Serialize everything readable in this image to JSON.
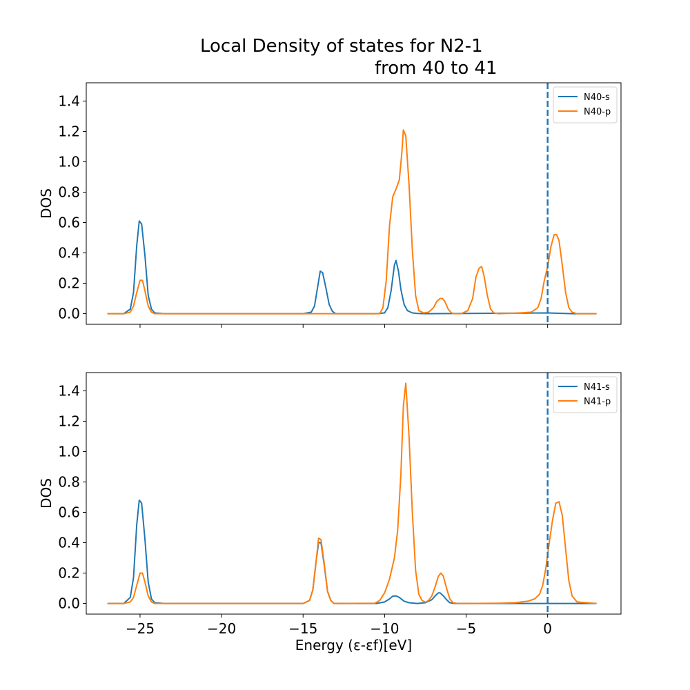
{
  "figure": {
    "title_line1": "Local Density of states for N2-1",
    "title_line2": "from 40 to 41"
  },
  "colors": {
    "s": "#1f77b4",
    "p": "#ff7f0e",
    "fermi": "#1f77b4",
    "axes": "#000000"
  },
  "chart_data": [
    {
      "type": "line",
      "title": "",
      "xlabel": "",
      "ylabel": "DOS",
      "xlim": [
        -28.3,
        4.5
      ],
      "ylim": [
        -0.07,
        1.52
      ],
      "xticks": [
        -25,
        -20,
        -15,
        -10,
        -5,
        0
      ],
      "xtick_labels_shown": false,
      "yticks": [
        0.0,
        0.2,
        0.4,
        0.6,
        0.8,
        1.0,
        1.2,
        1.4
      ],
      "ytick_labels": [
        "0.0",
        "0.2",
        "0.4",
        "0.6",
        "0.8",
        "1.0",
        "1.2",
        "1.4"
      ],
      "fermi_level": 0,
      "legend": "top-right",
      "series": [
        {
          "name": "N40-s",
          "color": "#1f77b4",
          "x": [
            -27.0,
            -26.0,
            -25.6,
            -25.4,
            -25.2,
            -25.05,
            -24.9,
            -24.7,
            -24.5,
            -24.3,
            -24.1,
            -23.5,
            -15.0,
            -14.5,
            -14.3,
            -14.1,
            -13.95,
            -13.8,
            -13.6,
            -13.4,
            -13.2,
            -13.0,
            -12.5,
            -10.5,
            -10.0,
            -9.8,
            -9.6,
            -9.4,
            -9.3,
            -9.15,
            -9.0,
            -8.8,
            -8.6,
            -8.3,
            -8.0,
            -7.5,
            0.0,
            1.5,
            3.0
          ],
          "y": [
            0.0,
            0.0,
            0.03,
            0.14,
            0.45,
            0.61,
            0.59,
            0.38,
            0.12,
            0.03,
            0.005,
            0.0,
            0.0,
            0.01,
            0.05,
            0.18,
            0.28,
            0.27,
            0.17,
            0.06,
            0.015,
            0.0,
            0.0,
            0.0,
            0.005,
            0.04,
            0.15,
            0.32,
            0.35,
            0.28,
            0.16,
            0.06,
            0.02,
            0.005,
            0.002,
            0.0,
            0.005,
            0.0,
            0.0
          ]
        },
        {
          "name": "N40-p",
          "color": "#ff7f0e",
          "x": [
            -27.0,
            -26.0,
            -25.6,
            -25.4,
            -25.2,
            -25.0,
            -24.85,
            -24.7,
            -24.5,
            -24.3,
            -24.1,
            -23.5,
            -10.3,
            -10.1,
            -9.9,
            -9.7,
            -9.5,
            -9.3,
            -9.1,
            -8.95,
            -8.85,
            -8.7,
            -8.5,
            -8.3,
            -8.1,
            -7.9,
            -7.6,
            -7.3,
            -7.0,
            -6.8,
            -6.6,
            -6.45,
            -6.3,
            -6.1,
            -5.9,
            -5.7,
            -5.3,
            -4.9,
            -4.6,
            -4.4,
            -4.2,
            -4.05,
            -3.9,
            -3.7,
            -3.5,
            -3.3,
            -3.0,
            -2.0,
            -1.0,
            -0.6,
            -0.4,
            -0.2,
            0.0,
            0.2,
            0.4,
            0.55,
            0.7,
            0.9,
            1.1,
            1.3,
            1.5,
            1.8,
            3.0
          ],
          "y": [
            0.0,
            0.0,
            0.01,
            0.05,
            0.14,
            0.22,
            0.22,
            0.15,
            0.05,
            0.01,
            0.0,
            0.0,
            0.0,
            0.04,
            0.22,
            0.58,
            0.77,
            0.82,
            0.88,
            1.05,
            1.21,
            1.17,
            0.85,
            0.42,
            0.12,
            0.02,
            0.005,
            0.01,
            0.04,
            0.08,
            0.1,
            0.1,
            0.08,
            0.03,
            0.005,
            0.0,
            0.0,
            0.02,
            0.1,
            0.24,
            0.3,
            0.31,
            0.25,
            0.12,
            0.03,
            0.005,
            0.0,
            0.003,
            0.01,
            0.04,
            0.1,
            0.22,
            0.31,
            0.44,
            0.52,
            0.52,
            0.48,
            0.32,
            0.14,
            0.04,
            0.01,
            0.0,
            0.0
          ]
        }
      ]
    },
    {
      "type": "line",
      "title": "",
      "xlabel": "Energy (ε-εf)[eV]",
      "ylabel": "DOS",
      "xlim": [
        -28.3,
        4.5
      ],
      "ylim": [
        -0.07,
        1.52
      ],
      "xticks": [
        -25,
        -20,
        -15,
        -10,
        -5,
        0
      ],
      "xtick_labels": [
        "−25",
        "−20",
        "−15",
        "−10",
        "−5",
        "0"
      ],
      "yticks": [
        0.0,
        0.2,
        0.4,
        0.6,
        0.8,
        1.0,
        1.2,
        1.4
      ],
      "ytick_labels": [
        "0.0",
        "0.2",
        "0.4",
        "0.6",
        "0.8",
        "1.0",
        "1.2",
        "1.4"
      ],
      "fermi_level": 0,
      "legend": "top-right",
      "series": [
        {
          "name": "N41-s",
          "color": "#1f77b4",
          "x": [
            -27.0,
            -26.0,
            -25.6,
            -25.4,
            -25.2,
            -25.05,
            -24.9,
            -24.7,
            -24.5,
            -24.3,
            -24.1,
            -23.5,
            -15.0,
            -14.6,
            -14.4,
            -14.2,
            -14.05,
            -13.9,
            -13.7,
            -13.5,
            -13.3,
            -13.1,
            -12.5,
            -10.5,
            -10.0,
            -9.7,
            -9.5,
            -9.3,
            -9.1,
            -8.8,
            -8.5,
            -8.0,
            -7.5,
            -7.1,
            -6.9,
            -6.7,
            -6.6,
            -6.4,
            -6.2,
            -6.0,
            -5.7,
            -5.0,
            0.0,
            1.5,
            3.0
          ],
          "y": [
            0.0,
            0.0,
            0.04,
            0.17,
            0.52,
            0.68,
            0.66,
            0.42,
            0.14,
            0.03,
            0.005,
            0.0,
            0.0,
            0.02,
            0.09,
            0.28,
            0.4,
            0.4,
            0.25,
            0.08,
            0.02,
            0.0,
            0.0,
            0.0,
            0.01,
            0.03,
            0.048,
            0.05,
            0.04,
            0.015,
            0.005,
            0.0,
            0.005,
            0.025,
            0.05,
            0.07,
            0.07,
            0.05,
            0.025,
            0.005,
            0.0,
            0.0,
            0.0,
            0.0,
            0.0
          ]
        },
        {
          "name": "N41-p",
          "color": "#ff7f0e",
          "x": [
            -27.0,
            -26.0,
            -25.6,
            -25.4,
            -25.2,
            -25.0,
            -24.85,
            -24.7,
            -24.5,
            -24.3,
            -24.1,
            -23.5,
            -15.0,
            -14.6,
            -14.4,
            -14.2,
            -14.05,
            -13.9,
            -13.7,
            -13.5,
            -13.3,
            -13.1,
            -12.5,
            -10.6,
            -10.3,
            -10.0,
            -9.7,
            -9.4,
            -9.2,
            -9.0,
            -8.85,
            -8.7,
            -8.5,
            -8.3,
            -8.1,
            -7.9,
            -7.7,
            -7.5,
            -7.3,
            -7.1,
            -6.9,
            -6.7,
            -6.55,
            -6.4,
            -6.2,
            -6.0,
            -5.8,
            -5.5,
            -5.0,
            -3.0,
            -2.0,
            -1.2,
            -0.8,
            -0.5,
            -0.3,
            -0.1,
            0.1,
            0.3,
            0.5,
            0.7,
            0.9,
            1.1,
            1.3,
            1.5,
            1.8,
            3.0
          ],
          "y": [
            0.0,
            0.0,
            0.01,
            0.04,
            0.12,
            0.2,
            0.2,
            0.14,
            0.05,
            0.01,
            0.0,
            0.0,
            0.0,
            0.02,
            0.09,
            0.28,
            0.43,
            0.42,
            0.26,
            0.08,
            0.02,
            0.0,
            0.0,
            0.002,
            0.02,
            0.07,
            0.16,
            0.3,
            0.48,
            0.85,
            1.3,
            1.45,
            1.1,
            0.6,
            0.22,
            0.06,
            0.02,
            0.008,
            0.02,
            0.05,
            0.11,
            0.18,
            0.2,
            0.18,
            0.1,
            0.03,
            0.005,
            0.0,
            0.0,
            0.002,
            0.005,
            0.015,
            0.03,
            0.06,
            0.12,
            0.24,
            0.4,
            0.55,
            0.66,
            0.67,
            0.58,
            0.36,
            0.15,
            0.05,
            0.01,
            0.0
          ]
        }
      ]
    }
  ]
}
